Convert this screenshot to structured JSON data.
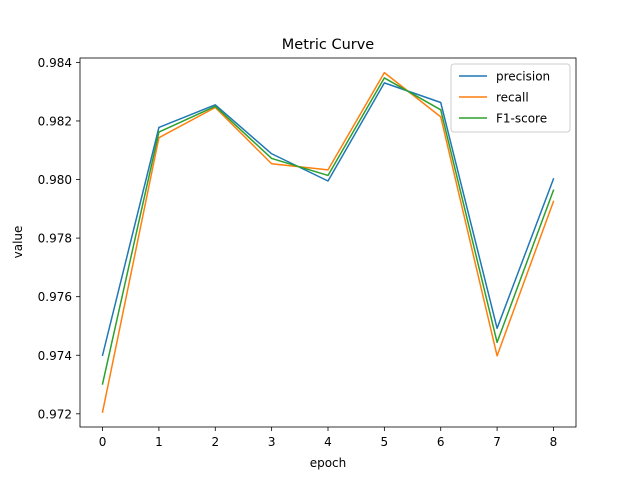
{
  "chart_data": {
    "type": "line",
    "title": "Metric Curve",
    "xlabel": "epoch",
    "ylabel": "value",
    "x": [
      0,
      1,
      2,
      3,
      4,
      5,
      6,
      7,
      8
    ],
    "xlim": [
      -0.4,
      8.4
    ],
    "ylim": [
      0.97155,
      0.98415
    ],
    "yticks": [
      0.972,
      0.974,
      0.976,
      0.978,
      0.98,
      0.982,
      0.984
    ],
    "ytick_labels": [
      "0.972",
      "0.974",
      "0.976",
      "0.978",
      "0.980",
      "0.982",
      "0.984"
    ],
    "xticks": [
      0,
      1,
      2,
      3,
      4,
      5,
      6,
      7,
      8
    ],
    "xtick_labels": [
      "0",
      "1",
      "2",
      "3",
      "4",
      "5",
      "6",
      "7",
      "8"
    ],
    "grid": false,
    "legend_position": "top-right",
    "series": [
      {
        "name": "precision",
        "color": "#1f77b4",
        "values": [
          0.974,
          0.98178,
          0.98255,
          0.98088,
          0.97995,
          0.9833,
          0.98263,
          0.97492,
          0.98002
        ]
      },
      {
        "name": "recall",
        "color": "#ff7f0e",
        "values": [
          0.97206,
          0.98143,
          0.98246,
          0.98054,
          0.98033,
          0.98365,
          0.98214,
          0.97398,
          0.97925
        ]
      },
      {
        "name": "F1-score",
        "color": "#2ca02c",
        "values": [
          0.97302,
          0.98162,
          0.9825,
          0.98072,
          0.98014,
          0.98347,
          0.98238,
          0.97444,
          0.97963
        ]
      }
    ]
  }
}
